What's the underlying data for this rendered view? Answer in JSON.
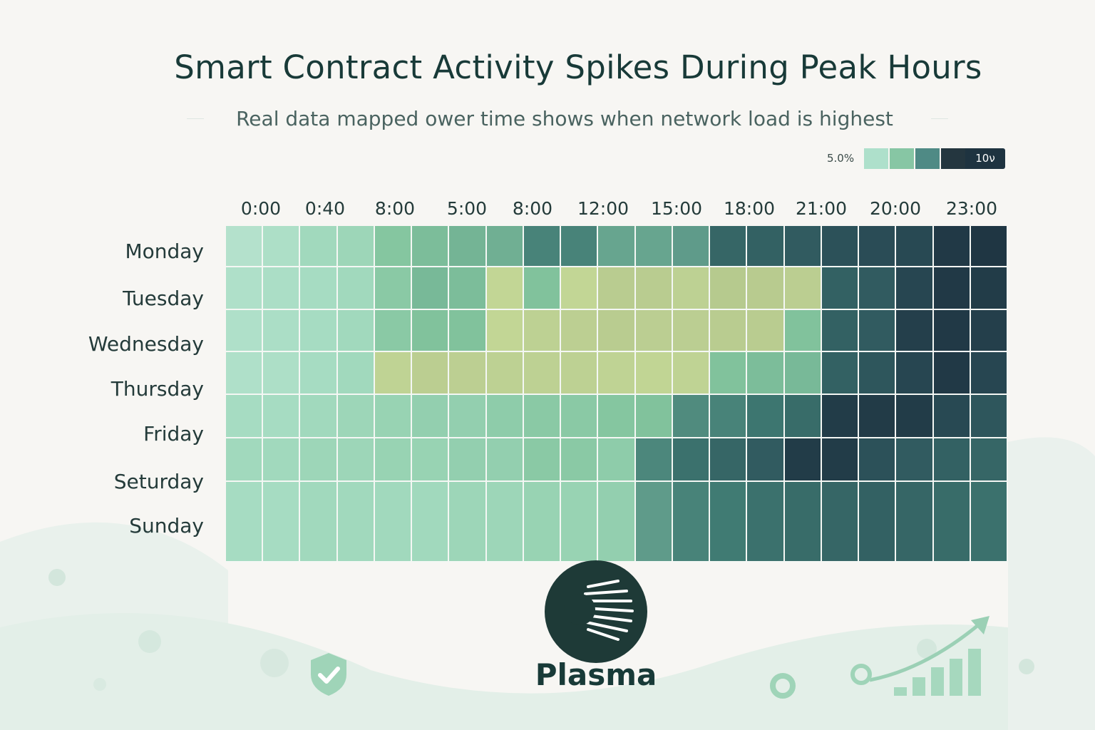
{
  "chart_data": {
    "type": "heatmap",
    "title": "Smart Contract Activity Spikes During Peak Hours",
    "subtitle": "Real data mapped ower time shows when network load is highest",
    "x_tick_labels": [
      "0:00",
      "0:40",
      "8:00",
      "5:00",
      "8:00",
      "12:00",
      "15:00",
      "18:00",
      "21:00",
      "20:00",
      "23:00"
    ],
    "rows": [
      "Monday",
      "Tuesday",
      "Wednesday",
      "Thursday",
      "Friday",
      "Seturday",
      "Sunday"
    ],
    "legend": {
      "low_label": "5.0%",
      "high_label": "10ν"
    },
    "value_range": [
      0,
      100
    ],
    "values": [
      [
        12,
        15,
        20,
        22,
        32,
        36,
        40,
        42,
        62,
        62,
        46,
        46,
        50,
        74,
        76,
        78,
        82,
        84,
        86,
        96,
        98
      ],
      [
        14,
        16,
        18,
        20,
        30,
        38,
        36,
        40,
        34,
        40,
        52,
        52,
        46,
        56,
        54,
        50,
        76,
        78,
        88,
        96,
        94
      ],
      [
        14,
        16,
        18,
        20,
        30,
        34,
        34,
        40,
        46,
        48,
        52,
        49,
        49,
        52,
        52,
        34,
        76,
        78,
        92,
        96,
        92
      ],
      [
        14,
        15,
        18,
        20,
        44,
        50,
        48,
        46,
        46,
        46,
        44,
        42,
        44,
        34,
        36,
        38,
        76,
        80,
        88,
        96,
        88
      ],
      [
        18,
        18,
        20,
        22,
        24,
        26,
        26,
        28,
        30,
        30,
        32,
        34,
        58,
        62,
        68,
        72,
        94,
        95,
        94,
        86,
        80
      ],
      [
        20,
        20,
        22,
        22,
        24,
        24,
        26,
        26,
        30,
        30,
        28,
        60,
        70,
        74,
        78,
        94,
        94,
        82,
        78,
        76,
        74
      ],
      [
        18,
        18,
        20,
        20,
        20,
        20,
        22,
        22,
        24,
        24,
        26,
        50,
        62,
        66,
        70,
        72,
        74,
        76,
        74,
        72,
        70
      ]
    ],
    "colors": {
      "scale": [
        "#cfe9dd",
        "#a9dec5",
        "#82c49d",
        "#5f9b8a",
        "#3f7a72",
        "#2a4d57",
        "#1e3340"
      ],
      "highlight": "#ece995",
      "text": "#1f3a3a",
      "background": "#f7f6f3"
    }
  },
  "brand": {
    "name": "Plasma",
    "icon": "plasma-logo-icon"
  }
}
